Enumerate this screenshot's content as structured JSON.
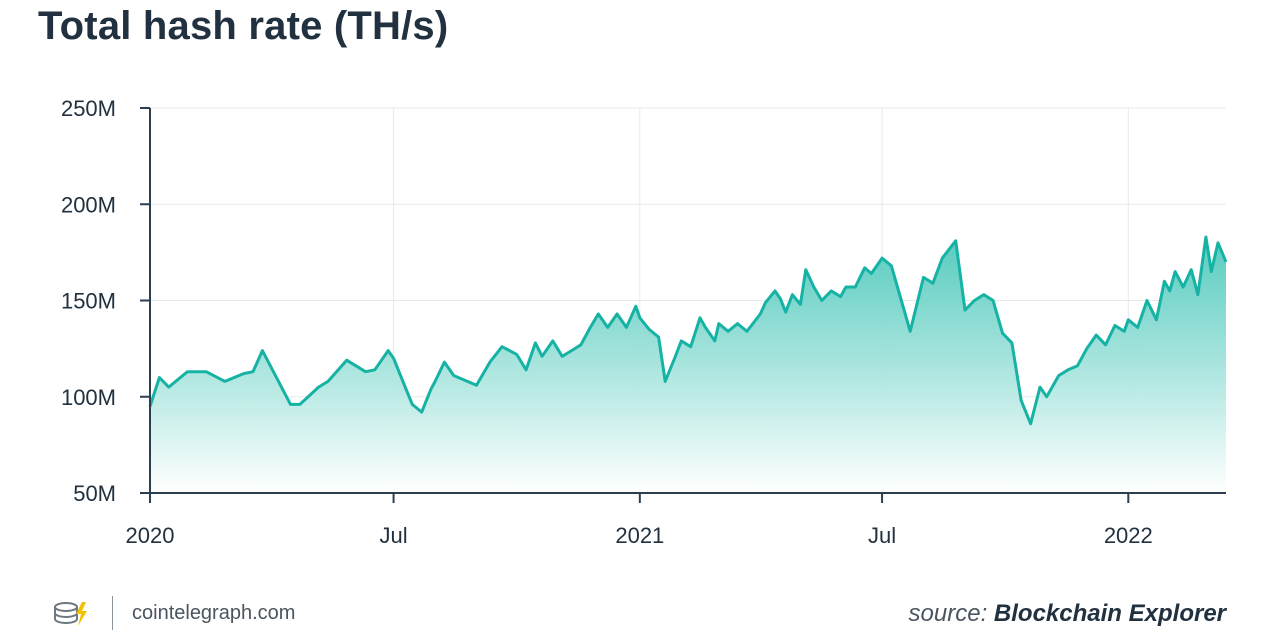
{
  "header": {
    "title": "Total hash rate (TH/s)"
  },
  "footer": {
    "site": "cointelegraph.com",
    "source_prefix": "source:",
    "source_name": "Blockchain Explorer",
    "logo_icon": "cointelegraph-logo-icon"
  },
  "colors": {
    "line": "#16b3a5",
    "fill_top": "#4fc9bc",
    "fill_bottom": "#ffffff",
    "grid": "#e6e9ec",
    "axis": "#2c3e50"
  },
  "chart_data": {
    "type": "area",
    "title": "Total hash rate (TH/s)",
    "xlabel": "",
    "ylabel": "",
    "x_type": "date",
    "xlim": [
      "2020-01-01",
      "2022-03-15"
    ],
    "ylim": [
      50000000,
      250000000
    ],
    "y_ticks": [
      50000000,
      100000000,
      150000000,
      200000000,
      250000000
    ],
    "y_tick_labels": [
      "50M",
      "100M",
      "150M",
      "200M",
      "250M"
    ],
    "x_ticks": [
      "2020-01-01",
      "2020-07-01",
      "2021-01-01",
      "2021-07-01",
      "2022-01-01"
    ],
    "x_tick_labels": [
      "2020",
      "Jul",
      "2021",
      "Jul",
      "2022"
    ],
    "grid": true,
    "series": [
      {
        "x": [
          "2020-01-01",
          "2020-01-08",
          "2020-01-15",
          "2020-01-29",
          "2020-02-12",
          "2020-02-26",
          "2020-03-11",
          "2020-03-18",
          "2020-03-25",
          "2020-04-15",
          "2020-04-22",
          "2020-05-06",
          "2020-05-13",
          "2020-05-27",
          "2020-06-10",
          "2020-06-17",
          "2020-06-27",
          "2020-07-01",
          "2020-07-08",
          "2020-07-15",
          "2020-07-22",
          "2020-07-29",
          "2020-08-01",
          "2020-08-08",
          "2020-08-15",
          "2020-09-01",
          "2020-09-11",
          "2020-09-20",
          "2020-10-01",
          "2020-10-08",
          "2020-10-15",
          "2020-10-20",
          "2020-10-28",
          "2020-11-04",
          "2020-11-11",
          "2020-11-18",
          "2020-11-25",
          "2020-12-01",
          "2020-12-08",
          "2020-12-15",
          "2020-12-22",
          "2020-12-29",
          "2021-01-01",
          "2021-01-08",
          "2021-01-15",
          "2021-01-20",
          "2021-01-27",
          "2021-02-01",
          "2021-02-08",
          "2021-02-15",
          "2021-02-19",
          "2021-02-26",
          "2021-03-01",
          "2021-03-08",
          "2021-03-15",
          "2021-03-22",
          "2021-04-01",
          "2021-04-05",
          "2021-04-12",
          "2021-04-16",
          "2021-04-20",
          "2021-04-25",
          "2021-05-01",
          "2021-05-05",
          "2021-05-11",
          "2021-05-17",
          "2021-05-24",
          "2021-05-31",
          "2021-06-04",
          "2021-06-11",
          "2021-06-18",
          "2021-06-23",
          "2021-07-01",
          "2021-07-08",
          "2021-07-22",
          "2021-08-01",
          "2021-08-08",
          "2021-08-15",
          "2021-08-25",
          "2021-09-01",
          "2021-09-08",
          "2021-09-15",
          "2021-09-22",
          "2021-09-29",
          "2021-10-06",
          "2021-10-13",
          "2021-10-20",
          "2021-10-27",
          "2021-11-01",
          "2021-11-10",
          "2021-11-17",
          "2021-11-24",
          "2021-12-01",
          "2021-12-08",
          "2021-12-15",
          "2021-12-22",
          "2021-12-29",
          "2022-01-01",
          "2022-01-08",
          "2022-01-15",
          "2022-01-22",
          "2022-01-28",
          "2022-02-01",
          "2022-02-05",
          "2022-02-11",
          "2022-02-17",
          "2022-02-22",
          "2022-02-28",
          "2022-03-04",
          "2022-03-09",
          "2022-03-15"
        ],
        "y": [
          95000000,
          110000000,
          105000000,
          113000000,
          113000000,
          108000000,
          112000000,
          113000000,
          124000000,
          96000000,
          96000000,
          105000000,
          108000000,
          119000000,
          113000000,
          114000000,
          124000000,
          120000000,
          108000000,
          96000000,
          92000000,
          104000000,
          108000000,
          118000000,
          111000000,
          106000000,
          118000000,
          126000000,
          122000000,
          114000000,
          128000000,
          121000000,
          129000000,
          121000000,
          124000000,
          127000000,
          136000000,
          143000000,
          136000000,
          143000000,
          136000000,
          147000000,
          141000000,
          135000000,
          131000000,
          108000000,
          120000000,
          129000000,
          126000000,
          141000000,
          136000000,
          129000000,
          138000000,
          134000000,
          138000000,
          134000000,
          143000000,
          149000000,
          155000000,
          151000000,
          144000000,
          153000000,
          148000000,
          166000000,
          157000000,
          150000000,
          155000000,
          152000000,
          157000000,
          157000000,
          167000000,
          164000000,
          172000000,
          168000000,
          134000000,
          162000000,
          159000000,
          172000000,
          181000000,
          145000000,
          150000000,
          153000000,
          150000000,
          133000000,
          128000000,
          98000000,
          86000000,
          105000000,
          100000000,
          111000000,
          114000000,
          116000000,
          125000000,
          132000000,
          127000000,
          137000000,
          134000000,
          140000000,
          136000000,
          150000000,
          140000000,
          160000000,
          155000000,
          165000000,
          157000000,
          166000000,
          153000000,
          183000000,
          165000000,
          180000000,
          170000000
        ]
      }
    ]
  }
}
